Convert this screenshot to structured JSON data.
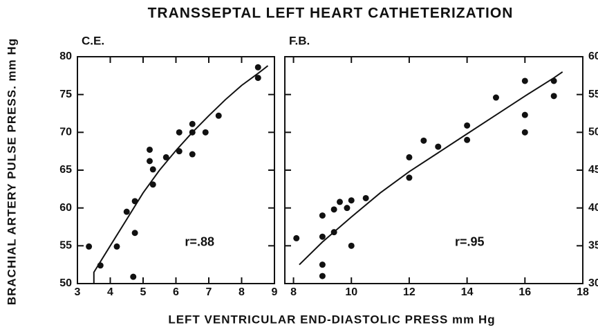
{
  "title": "TRANSSEPTAL LEFT HEART CATHETERIZATION",
  "x_label": "LEFT VENTRICULAR END-DIASTOLIC PRESS mm Hg",
  "y_label": "BRACHIAL ARTERY PULSE PRESS. mm Hg",
  "chart_data": [
    {
      "type": "scatter",
      "subtitle": "C.E.",
      "annotation": "r=.88",
      "y_side": "left",
      "xlim": [
        3,
        9
      ],
      "xticks": [
        3,
        4,
        5,
        6,
        7,
        8,
        9
      ],
      "ylim": [
        50,
        80
      ],
      "yticks": [
        50,
        55,
        60,
        65,
        70,
        75,
        80
      ],
      "series": [
        {
          "mode": "markers",
          "color": "#111111",
          "x": [
            3.35,
            3.7,
            4.2,
            4.5,
            4.75,
            4.75,
            4.7,
            5.2,
            5.2,
            5.3,
            5.3,
            5.7,
            6.1,
            6.1,
            6.5,
            6.5,
            6.5,
            6.9,
            7.3,
            8.5,
            8.5
          ],
          "values": [
            54.9,
            52.4,
            54.9,
            59.5,
            60.9,
            56.7,
            50.9,
            67.7,
            66.2,
            65.1,
            63.1,
            66.7,
            67.5,
            70,
            71.1,
            70,
            67.1,
            70,
            72.2,
            78.6,
            77.2
          ]
        },
        {
          "mode": "lines",
          "color": "#111111",
          "x": [
            3.5,
            3.5,
            4,
            4.5,
            5,
            5.5,
            6,
            6.5,
            7,
            7.5,
            8,
            8.5,
            8.8
          ],
          "values": [
            50,
            51.5,
            55,
            58.5,
            62,
            65,
            67.6,
            70,
            72.2,
            74.3,
            76.2,
            77.8,
            78.8
          ]
        }
      ]
    },
    {
      "type": "scatter",
      "subtitle": "F.B.",
      "annotation": "r=.95",
      "y_side": "right",
      "xlim": [
        7.7,
        18
      ],
      "xticks": [
        8,
        10,
        12,
        14,
        16,
        18
      ],
      "ylim": [
        30,
        60
      ],
      "yticks": [
        30,
        35,
        40,
        45,
        50,
        55,
        60
      ],
      "series": [
        {
          "mode": "markers",
          "color": "#111111",
          "x": [
            8.1,
            9,
            9,
            9,
            9,
            9.4,
            9.4,
            9.6,
            9.85,
            10,
            10,
            10.5,
            12,
            12,
            12.5,
            13,
            14,
            14,
            15,
            16,
            16,
            16,
            17,
            17
          ],
          "values": [
            36,
            39,
            36.2,
            32.5,
            31,
            39.8,
            36.8,
            40.8,
            40,
            41,
            35,
            41.3,
            46.7,
            44,
            48.9,
            48.1,
            50.9,
            49,
            54.6,
            56.8,
            52.3,
            50,
            56.8,
            54.8
          ]
        },
        {
          "mode": "lines",
          "color": "#111111",
          "x": [
            8.2,
            9,
            10,
            11,
            12,
            13,
            14,
            15,
            16,
            17,
            17.3
          ],
          "values": [
            32.5,
            35.5,
            38.8,
            42,
            44.8,
            47.3,
            49.8,
            52.3,
            54.8,
            57.2,
            58
          ]
        }
      ]
    }
  ]
}
